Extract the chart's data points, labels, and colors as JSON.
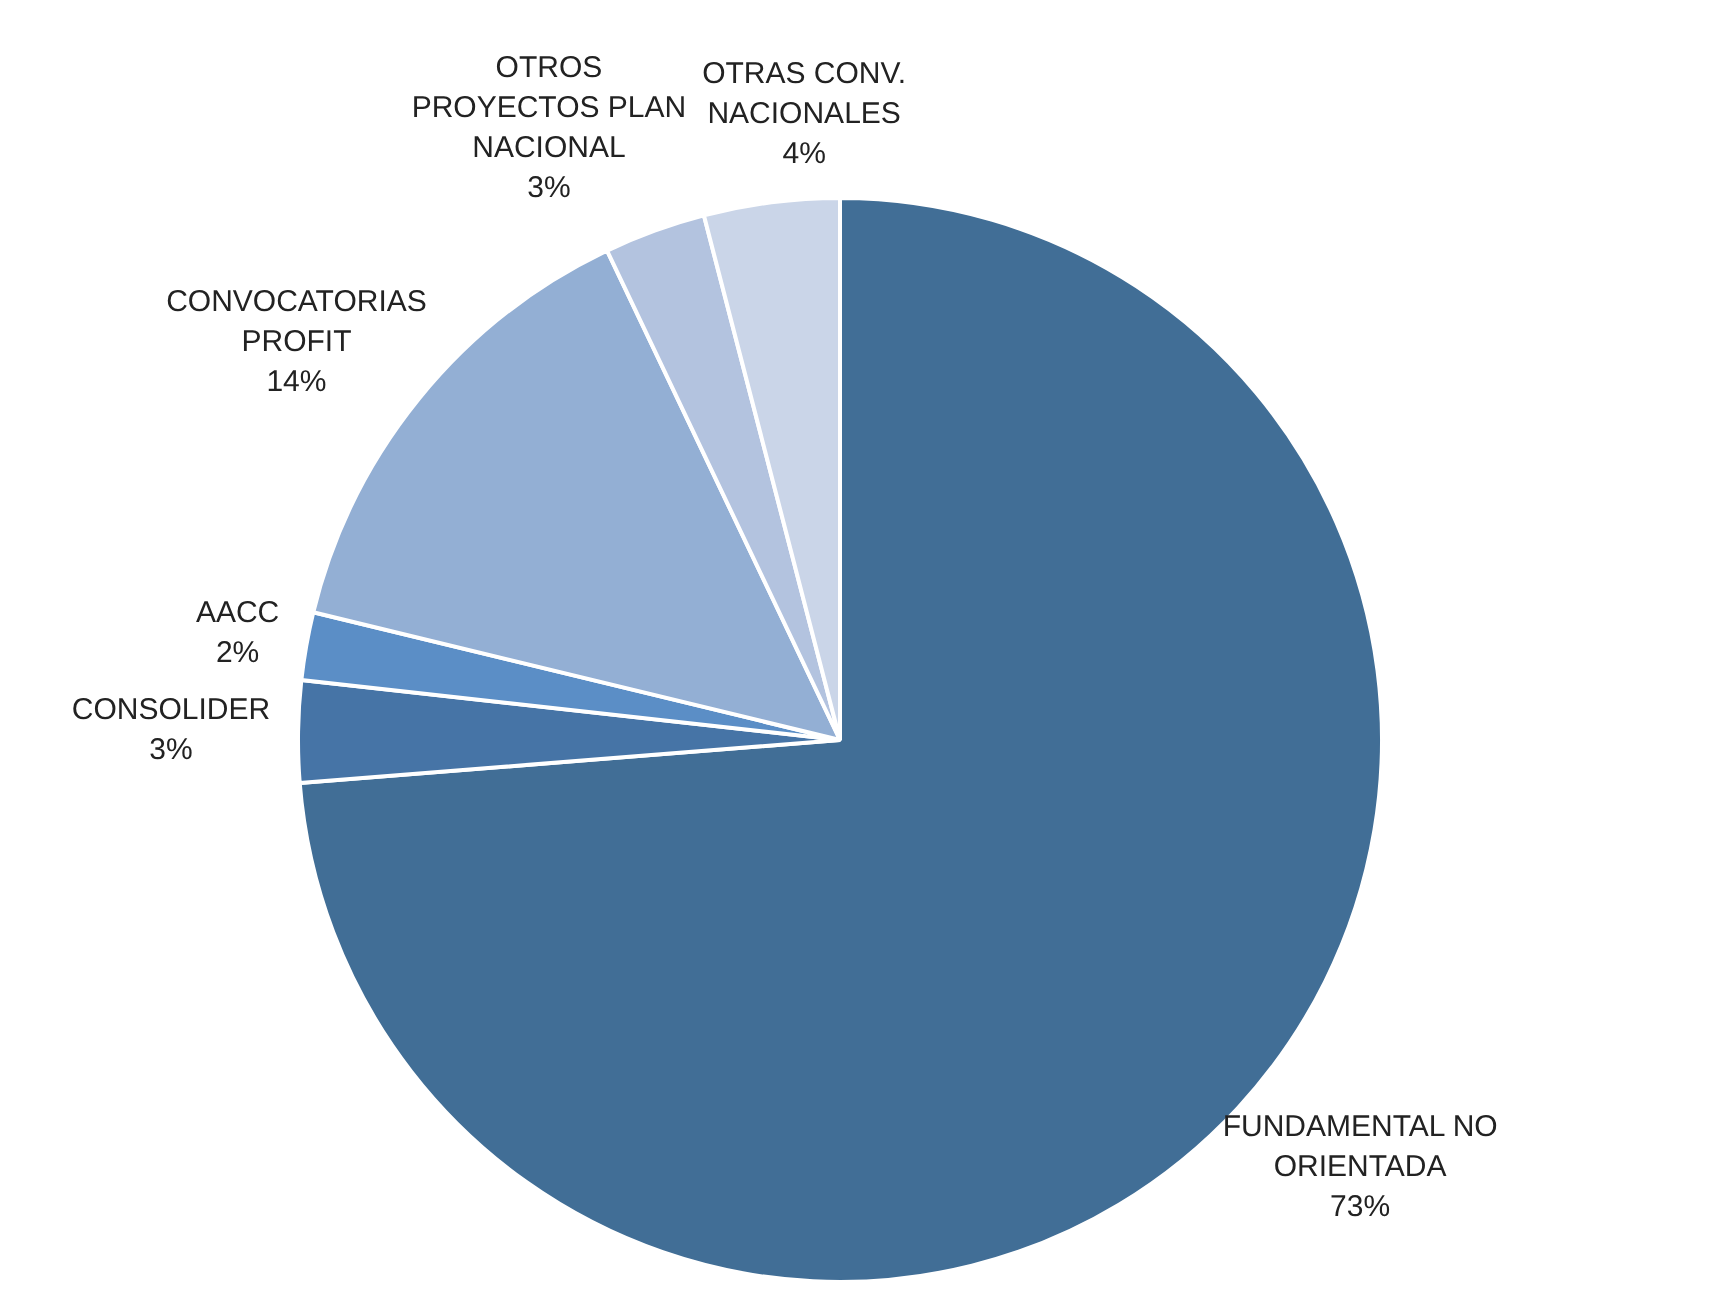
{
  "chart_data": {
    "type": "pie",
    "categories": [
      "FUNDAMENTAL NO ORIENTADA",
      "CONSOLIDER",
      "AACC",
      "CONVOCATORIAS PROFIT",
      "OTROS PROYECTOS PLAN NACIONAL",
      "OTRAS CONV. NACIONALES"
    ],
    "values": [
      73,
      3,
      2,
      14,
      3,
      4
    ],
    "colors": [
      "#416e96",
      "#4674a6",
      "#5b8ec6",
      "#93afd4",
      "#b3c3df",
      "#cad5e8"
    ],
    "value_labels": [
      "73%",
      "3%",
      "2%",
      "14%",
      "3%",
      "4%"
    ],
    "legend": false
  }
}
